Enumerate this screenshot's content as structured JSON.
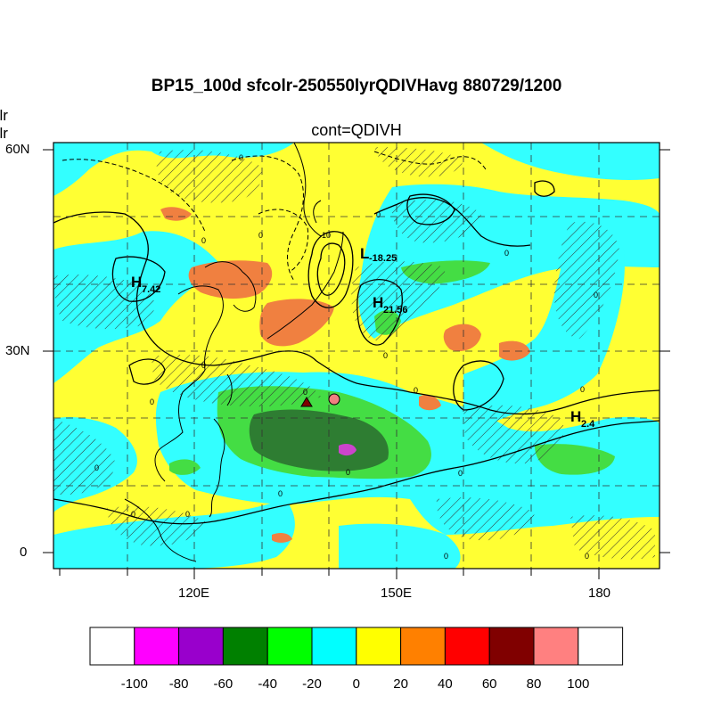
{
  "header": {
    "title": "BP15_100d sfcolr-250550lyrQDIVHavg  880729/1200",
    "subtitle": "cont=QDIVH",
    "left_label_1": "olr",
    "left_label_2": "olr"
  },
  "axes": {
    "lat_labels": [
      "60N",
      "30N",
      "0"
    ],
    "lon_labels": [
      "120E",
      "150E",
      "180"
    ]
  },
  "centers": [
    {
      "symbol": "H",
      "value": "7.42"
    },
    {
      "symbol": "L",
      "value": "-18.25"
    },
    {
      "symbol": "H",
      "value": "21.56"
    },
    {
      "symbol": "H",
      "value": "2.4"
    }
  ],
  "contour_labels": [
    "0",
    "-10"
  ],
  "colorbar": {
    "labels": [
      "-100",
      "-80",
      "-60",
      "-40",
      "-20",
      "0",
      "20",
      "40",
      "60",
      "80",
      "100"
    ],
    "colors": [
      "#ffffff",
      "#ff00ff",
      "#9900cc",
      "#008000",
      "#00ff00",
      "#00ffff",
      "#ffff00",
      "#ff8000",
      "#ff0000",
      "#800000",
      "#ff8080",
      "#ffffff"
    ]
  },
  "colors": {
    "cyan": "#33ffff",
    "yellow": "#ffff33",
    "orange": "#f08040",
    "lightgreen": "#44dd44",
    "darkgreen": "#2e7d32",
    "magenta": "#cc44cc",
    "marker_circle": "#f08080",
    "marker_triangle": "#800000"
  }
}
